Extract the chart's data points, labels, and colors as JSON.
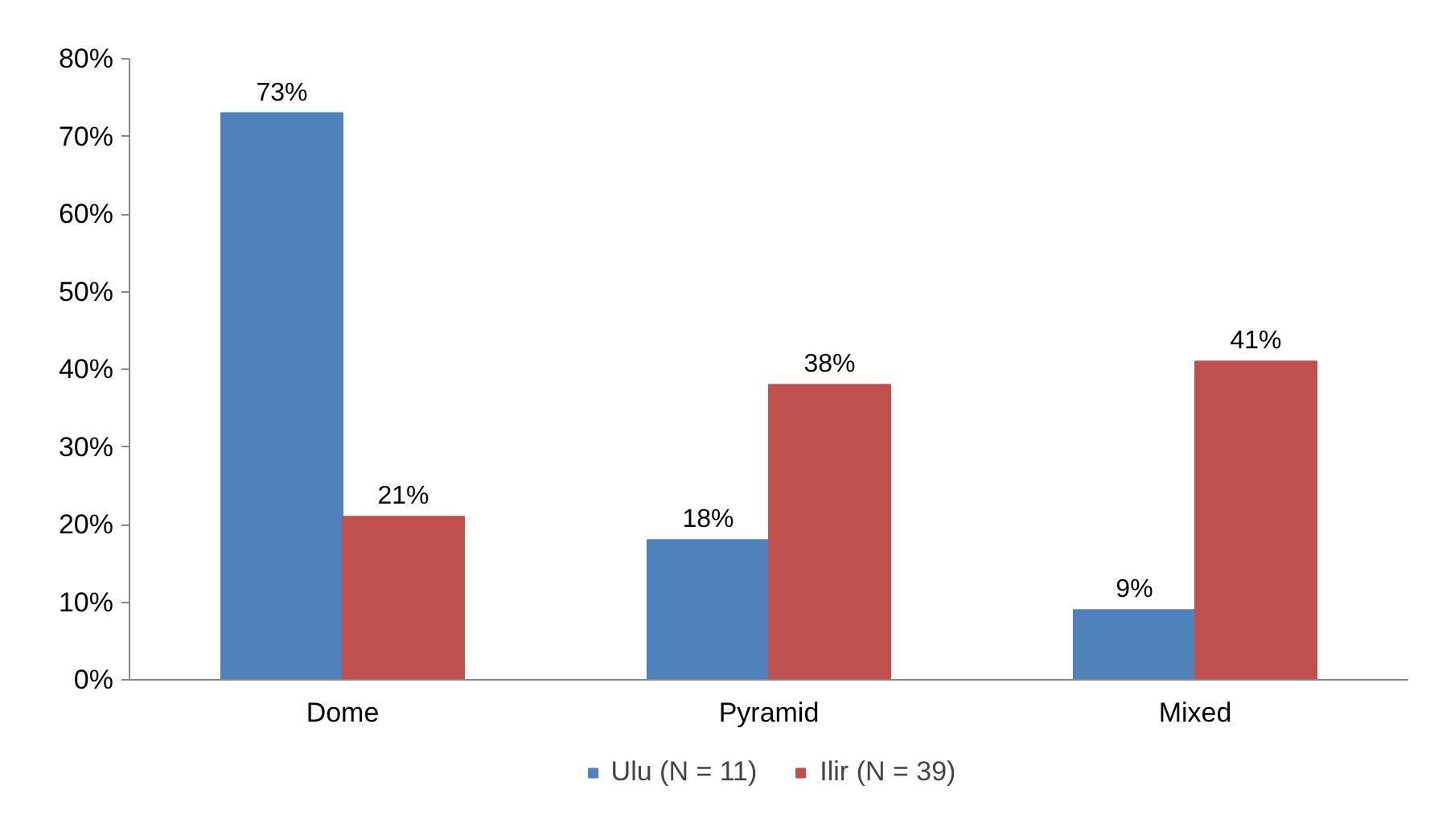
{
  "chart_data": {
    "type": "bar",
    "categories": [
      "Dome",
      "Pyramid",
      "Mixed"
    ],
    "series": [
      {
        "name": "Ulu (N = 11)",
        "color": "#4f81bd",
        "values": [
          73,
          18,
          9
        ]
      },
      {
        "name": "Ilir (N = 39)",
        "color": "#c0504d",
        "values": [
          21,
          38,
          41
        ]
      }
    ],
    "ylim": [
      0,
      80
    ],
    "yticks": [
      {
        "value": 0,
        "label": "0%"
      },
      {
        "value": 10,
        "label": "10%"
      },
      {
        "value": 20,
        "label": "20%"
      },
      {
        "value": 30,
        "label": "30%"
      },
      {
        "value": 40,
        "label": "40%"
      },
      {
        "value": 50,
        "label": "50%"
      },
      {
        "value": 60,
        "label": "60%"
      },
      {
        "value": 70,
        "label": "70%"
      },
      {
        "value": 80,
        "label": "80%"
      }
    ],
    "value_labels": [
      [
        "73%",
        "18%",
        "9%"
      ],
      [
        "21%",
        "38%",
        "41%"
      ]
    ],
    "grid": false,
    "legend": "bottom"
  }
}
